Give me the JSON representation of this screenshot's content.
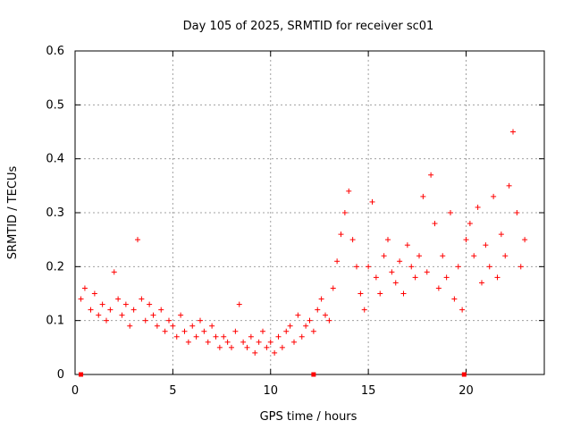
{
  "chart_data": {
    "type": "scatter",
    "title": "Day 105 of 2025, SRMTID for receiver sc01",
    "xlabel": "GPS time / hours",
    "ylabel": "SRMTID / TECUs",
    "xlim": [
      0,
      24
    ],
    "ylim": [
      0,
      0.6
    ],
    "x_ticks": [
      0,
      5,
      10,
      15,
      20
    ],
    "y_ticks": [
      0,
      0.1,
      0.2,
      0.3,
      0.4,
      0.5,
      0.6
    ],
    "x_tick_labels": [
      "0",
      "5",
      "10",
      "15",
      "20"
    ],
    "y_tick_labels": [
      "0",
      "0.1",
      "0.2",
      "0.3",
      "0.4",
      "0.5",
      "0.6"
    ],
    "grid": true,
    "marker": "plus",
    "color": "#ff0000",
    "series": [
      {
        "name": "sc01",
        "x": [
          0.3,
          0.5,
          0.8,
          1.0,
          1.2,
          1.4,
          1.6,
          1.8,
          2.0,
          2.2,
          2.4,
          2.6,
          2.8,
          3.0,
          3.2,
          3.4,
          3.6,
          3.8,
          4.0,
          4.2,
          4.4,
          4.6,
          4.8,
          5.0,
          5.2,
          5.4,
          5.6,
          5.8,
          6.0,
          6.2,
          6.4,
          6.6,
          6.8,
          7.0,
          7.2,
          7.4,
          7.6,
          7.8,
          8.0,
          8.2,
          8.4,
          8.6,
          8.8,
          9.0,
          9.2,
          9.4,
          9.6,
          9.8,
          10.0,
          10.2,
          10.4,
          10.6,
          10.8,
          11.0,
          11.2,
          11.4,
          11.6,
          11.8,
          12.0,
          12.2,
          12.4,
          12.6,
          12.8,
          13.0,
          13.2,
          13.4,
          13.6,
          13.8,
          14.0,
          14.2,
          14.4,
          14.6,
          14.8,
          15.0,
          15.2,
          15.4,
          15.6,
          15.8,
          16.0,
          16.2,
          16.4,
          16.6,
          16.8,
          17.0,
          17.2,
          17.4,
          17.6,
          17.8,
          18.0,
          18.2,
          18.4,
          18.6,
          18.8,
          19.0,
          19.2,
          19.4,
          19.6,
          19.8,
          20.0,
          20.2,
          20.4,
          20.6,
          20.8,
          21.0,
          21.2,
          21.4,
          21.6,
          21.8,
          22.0,
          22.2,
          22.4,
          22.6,
          22.8,
          23.0
        ],
        "y": [
          0.14,
          0.16,
          0.12,
          0.15,
          0.11,
          0.13,
          0.1,
          0.12,
          0.19,
          0.14,
          0.11,
          0.13,
          0.09,
          0.12,
          0.25,
          0.14,
          0.1,
          0.13,
          0.11,
          0.09,
          0.12,
          0.08,
          0.1,
          0.09,
          0.07,
          0.11,
          0.08,
          0.06,
          0.09,
          0.07,
          0.1,
          0.08,
          0.06,
          0.09,
          0.07,
          0.05,
          0.07,
          0.06,
          0.05,
          0.08,
          0.13,
          0.06,
          0.05,
          0.07,
          0.04,
          0.06,
          0.08,
          0.05,
          0.06,
          0.04,
          0.07,
          0.05,
          0.08,
          0.09,
          0.06,
          0.11,
          0.07,
          0.09,
          0.1,
          0.08,
          0.12,
          0.14,
          0.11,
          0.1,
          0.16,
          0.21,
          0.26,
          0.3,
          0.34,
          0.25,
          0.2,
          0.15,
          0.12,
          0.2,
          0.32,
          0.18,
          0.15,
          0.22,
          0.25,
          0.19,
          0.17,
          0.21,
          0.15,
          0.24,
          0.2,
          0.18,
          0.22,
          0.33,
          0.19,
          0.37,
          0.28,
          0.16,
          0.22,
          0.18,
          0.3,
          0.14,
          0.2,
          0.12,
          0.25,
          0.28,
          0.22,
          0.31,
          0.17,
          0.24,
          0.2,
          0.33,
          0.18,
          0.26,
          0.22,
          0.35,
          0.45,
          0.3,
          0.2,
          0.25
        ]
      }
    ]
  },
  "axis_markers": [
    0.3,
    12.2,
    19.9
  ]
}
